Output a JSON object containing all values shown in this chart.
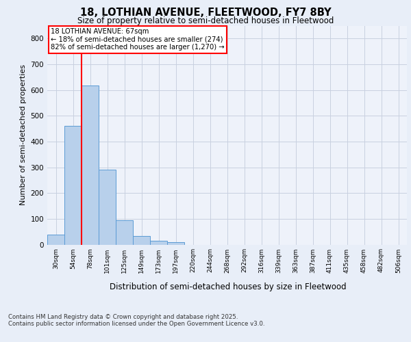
{
  "title1": "18, LOTHIAN AVENUE, FLEETWOOD, FY7 8BY",
  "title2": "Size of property relative to semi-detached houses in Fleetwood",
  "xlabel": "Distribution of semi-detached houses by size in Fleetwood",
  "ylabel": "Number of semi-detached properties",
  "categories": [
    "30sqm",
    "54sqm",
    "78sqm",
    "101sqm",
    "125sqm",
    "149sqm",
    "173sqm",
    "197sqm",
    "220sqm",
    "244sqm",
    "268sqm",
    "292sqm",
    "316sqm",
    "339sqm",
    "363sqm",
    "387sqm",
    "411sqm",
    "435sqm",
    "458sqm",
    "482sqm",
    "506sqm"
  ],
  "values": [
    38,
    460,
    618,
    290,
    93,
    32,
    15,
    9,
    0,
    0,
    0,
    0,
    0,
    0,
    0,
    0,
    0,
    0,
    0,
    0,
    0
  ],
  "bar_color": "#b8d0eb",
  "bar_edge_color": "#5b9bd5",
  "vline_x": 1.5,
  "vline_color": "red",
  "annotation_title": "18 LOTHIAN AVENUE: 67sqm",
  "annotation_line1": "← 18% of semi-detached houses are smaller (274)",
  "annotation_line2": "82% of semi-detached houses are larger (1,270) →",
  "annotation_box_color": "red",
  "ylim": [
    0,
    850
  ],
  "yticks": [
    0,
    100,
    200,
    300,
    400,
    500,
    600,
    700,
    800
  ],
  "footer1": "Contains HM Land Registry data © Crown copyright and database right 2025.",
  "footer2": "Contains public sector information licensed under the Open Government Licence v3.0.",
  "bg_color": "#e8eef8",
  "plot_bg_color": "#eef2fa",
  "grid_color": "#c8d0e0"
}
